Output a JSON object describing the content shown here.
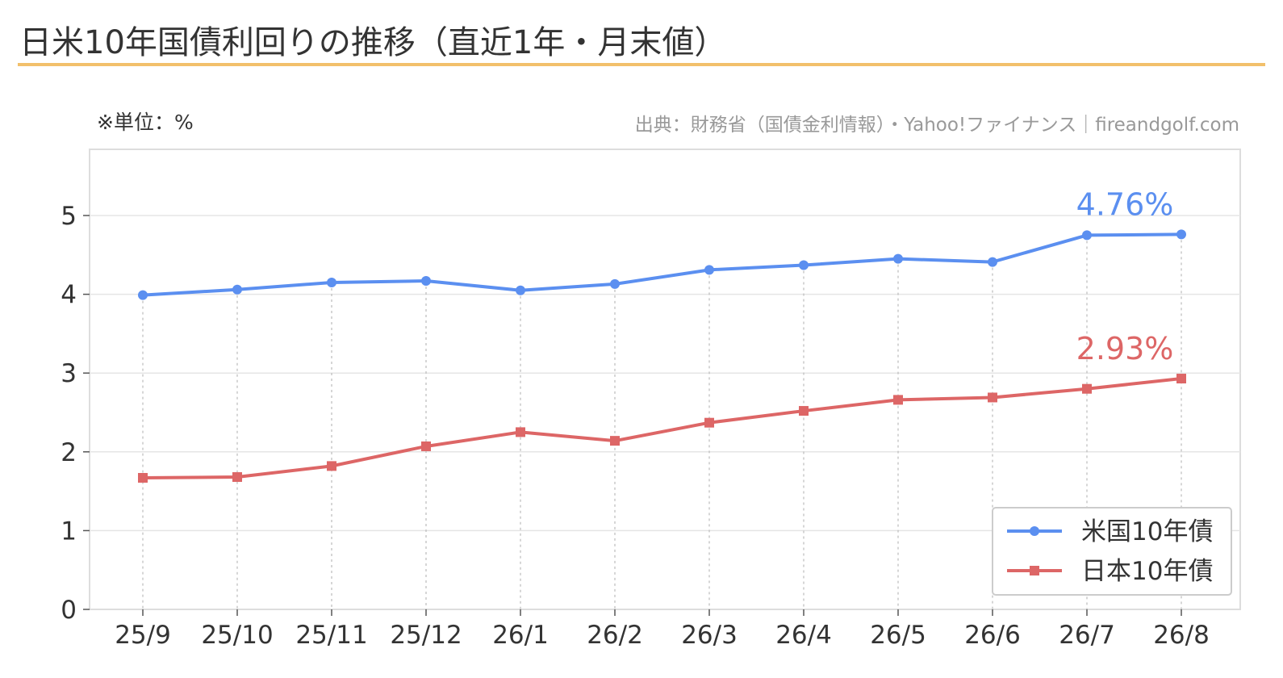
{
  "chart_data": {
    "type": "line",
    "title": "日米10年国債利回りの推移（直近1年・月末値）",
    "unit_note": "※単位：%",
    "source": "出典：財務省（国債金利情報）・Yahoo!ファイナンス｜fireandgolf.com",
    "categories": [
      "25/9",
      "25/10",
      "25/11",
      "25/12",
      "26/1",
      "26/2",
      "26/3",
      "26/4",
      "26/5",
      "26/6",
      "26/7",
      "26/8"
    ],
    "ylim": [
      0,
      5.8
    ],
    "yticks": [
      0,
      1,
      2,
      3,
      4,
      5
    ],
    "grid": true,
    "legend_position": "bottom-right",
    "series": [
      {
        "name": "米国10年債",
        "color": "#5b8ff0",
        "marker": "circle",
        "values": [
          3.99,
          4.06,
          4.15,
          4.17,
          4.05,
          4.13,
          4.31,
          4.37,
          4.45,
          4.41,
          4.75,
          4.76
        ],
        "end_label": "4.76%"
      },
      {
        "name": "日本10年債",
        "color": "#dd6666",
        "marker": "square",
        "values": [
          1.67,
          1.68,
          1.82,
          2.07,
          2.25,
          2.14,
          2.37,
          2.52,
          2.66,
          2.69,
          2.8,
          2.93
        ],
        "end_label": "2.93%"
      }
    ],
    "title_underline_color": "#f2c06b"
  }
}
